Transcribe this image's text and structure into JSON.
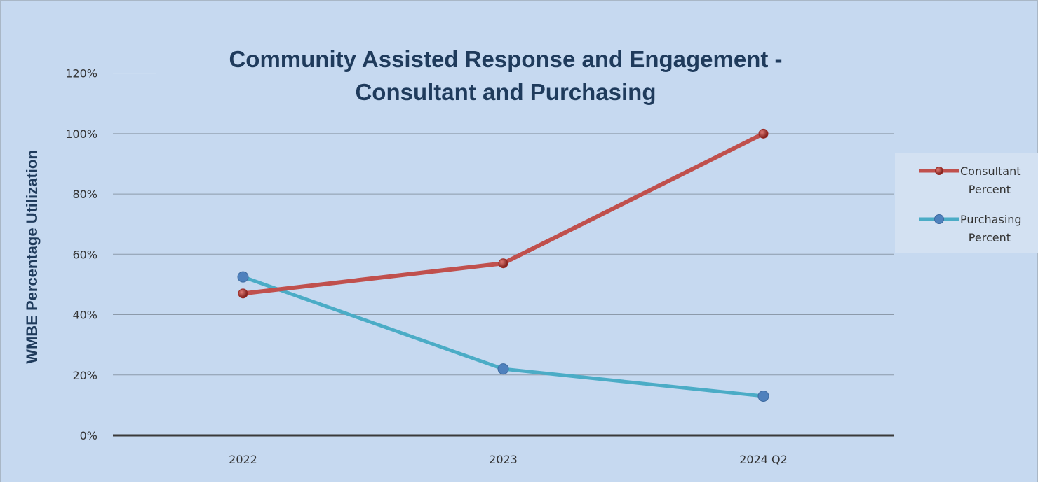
{
  "chart_data": {
    "type": "line",
    "title": "Community Assisted Response and Engagement - Consultant and Purchasing",
    "title_lines": [
      "Community Assisted Response and Engagement -",
      "Consultant and Purchasing"
    ],
    "xlabel": "",
    "ylabel": "WMBE Percentage Utilization",
    "categories": [
      "2022",
      "2023",
      "2024 Q2"
    ],
    "yticks": [
      "0%",
      "20%",
      "40%",
      "60%",
      "80%",
      "100%",
      "120%"
    ],
    "ylim": [
      0,
      1.2
    ],
    "grid": true,
    "legend_position": "right",
    "series": [
      {
        "name": "Consultant Percent",
        "name_lines": [
          "Consultant",
          "Percent"
        ],
        "values": [
          0.47,
          0.57,
          1.0
        ],
        "color": "#c0504d"
      },
      {
        "name": "Purchasing Percent",
        "name_lines": [
          "Purchasing",
          "Percent"
        ],
        "values": [
          0.525,
          0.22,
          0.13
        ],
        "color": "#4bacc6"
      }
    ],
    "colors": {
      "background": "#c6d9f0",
      "title": "#1f3b5c",
      "gridline": "#8c9aaa",
      "baseline": "#3a3a3a",
      "consultant_marker": "#9c2a24",
      "purchasing_marker": "#4f81bd"
    }
  }
}
